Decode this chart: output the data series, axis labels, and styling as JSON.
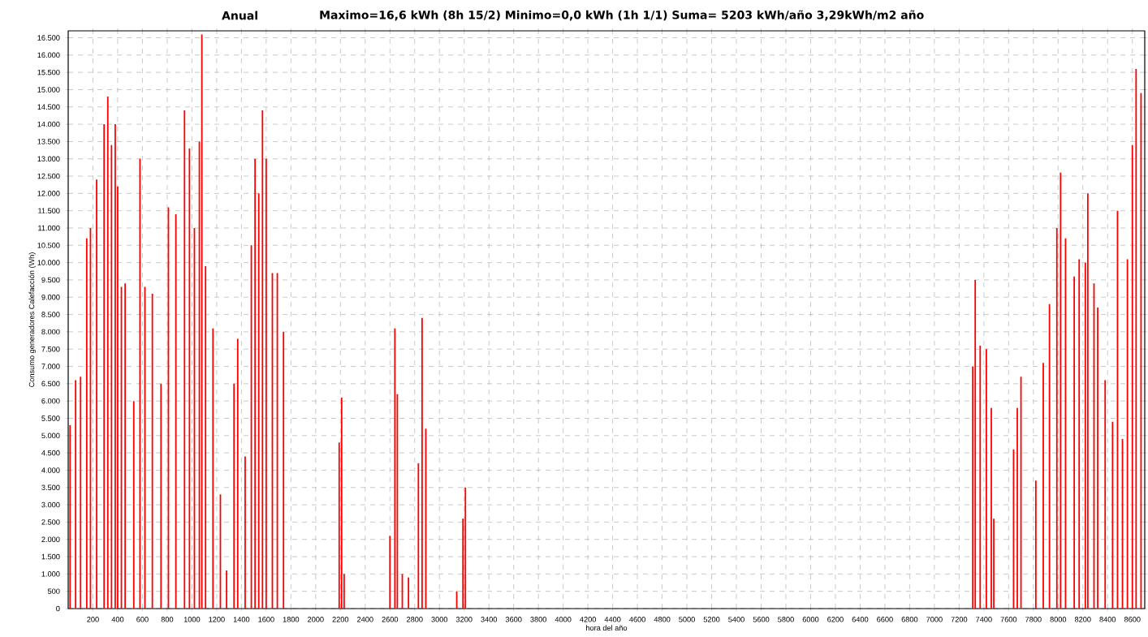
{
  "chart_data": {
    "type": "bar",
    "title": "Anual",
    "subtitle": "Maximo=16,6 kWh  (8h   15/2)  Minimo=0,0 kWh  (1h   1/1)  Suma= 5203 kWh/año      3,29kWh/m2 año",
    "xlabel": "hora del año",
    "ylabel": "Consumo generadores Calefacción (Wh)",
    "x": [
      15,
      60,
      100,
      150,
      180,
      230,
      290,
      320,
      350,
      380,
      400,
      430,
      460,
      530,
      580,
      620,
      680,
      750,
      810,
      870,
      940,
      980,
      1020,
      1060,
      1080,
      1110,
      1170,
      1230,
      1280,
      1340,
      1370,
      1430,
      1480,
      1510,
      1540,
      1570,
      1600,
      1650,
      1690,
      1740,
      2190,
      2210,
      2230,
      2600,
      2640,
      2660,
      2700,
      2750,
      2830,
      2860,
      2890,
      3140,
      3190,
      3210,
      7310,
      7330,
      7370,
      7420,
      7460,
      7480,
      7640,
      7670,
      7700,
      7820,
      7880,
      7930,
      7990,
      8020,
      8060,
      8130,
      8170,
      8220,
      8240,
      8290,
      8320,
      8380,
      8440,
      8480,
      8520,
      8560,
      8600,
      8630,
      8670
    ],
    "values": [
      5300,
      6600,
      6700,
      10700,
      11000,
      12400,
      14000,
      14800,
      13400,
      14000,
      12200,
      9300,
      9400,
      6000,
      13000,
      9300,
      9100,
      6500,
      11600,
      11400,
      14400,
      13300,
      11000,
      13500,
      16600,
      9900,
      8100,
      3300,
      1100,
      6500,
      7800,
      4400,
      10500,
      13000,
      12000,
      14400,
      13000,
      9700,
      9700,
      8000,
      4800,
      6100,
      1000,
      2100,
      8100,
      6200,
      1000,
      900,
      4200,
      8400,
      5200,
      500,
      2600,
      3500,
      7000,
      9500,
      7600,
      7500,
      5800,
      2600,
      4600,
      5800,
      6700,
      3700,
      7100,
      8800,
      11000,
      12600,
      10700,
      9600,
      10100,
      10000,
      12000,
      9400,
      8700,
      6600,
      5400,
      11500,
      4900,
      10100,
      13400,
      15600,
      14900
    ],
    "color": "#ff0000",
    "xlim": [
      0,
      8700
    ],
    "ylim": [
      0,
      16700
    ],
    "xticks": [
      200,
      400,
      600,
      800,
      1000,
      1200,
      1400,
      1600,
      1800,
      2000,
      2200,
      2400,
      2600,
      2800,
      3000,
      3200,
      3400,
      3600,
      3800,
      4000,
      4200,
      4400,
      4600,
      4800,
      5000,
      5200,
      5400,
      5600,
      5800,
      6000,
      6200,
      6400,
      6600,
      6800,
      7000,
      7200,
      7400,
      7600,
      7800,
      8000,
      8200,
      8400,
      8600
    ],
    "yticks": [
      0,
      500,
      {
        "value": 1000,
        "label": "1.000"
      },
      {
        "value": 1500,
        "label": "1.500"
      },
      {
        "value": 2000,
        "label": "2.000"
      },
      {
        "value": 2500,
        "label": "2.500"
      },
      {
        "value": 3000,
        "label": "3.000"
      },
      {
        "value": 3500,
        "label": "3.500"
      },
      {
        "value": 4000,
        "label": "4.000"
      },
      {
        "value": 4500,
        "label": "4.500"
      },
      {
        "value": 5000,
        "label": "5.000"
      },
      {
        "value": 5500,
        "label": "5.500"
      },
      {
        "value": 6000,
        "label": "6.000"
      },
      {
        "value": 6500,
        "label": "6.500"
      },
      {
        "value": 7000,
        "label": "7.000"
      },
      {
        "value": 7500,
        "label": "7.500"
      },
      {
        "value": 8000,
        "label": "8.000"
      },
      {
        "value": 8500,
        "label": "8.500"
      },
      {
        "value": 9000,
        "label": "9.000"
      },
      {
        "value": 9500,
        "label": "9.500"
      },
      {
        "value": 10000,
        "label": "10.000"
      },
      {
        "value": 10500,
        "label": "10.500"
      },
      {
        "value": 11000,
        "label": "11.000"
      },
      {
        "value": 11500,
        "label": "11.500"
      },
      {
        "value": 12000,
        "label": "12.000"
      },
      {
        "value": 12500,
        "label": "12.500"
      },
      {
        "value": 13000,
        "label": "13.000"
      },
      {
        "value": 13500,
        "label": "13.500"
      },
      {
        "value": 14000,
        "label": "14.000"
      },
      {
        "value": 14500,
        "label": "14.500"
      },
      {
        "value": 15000,
        "label": "15.000"
      },
      {
        "value": 15500,
        "label": "15.500"
      },
      {
        "value": 16000,
        "label": "16.000"
      },
      {
        "value": 16500,
        "label": "16.500"
      }
    ],
    "grid": true
  }
}
